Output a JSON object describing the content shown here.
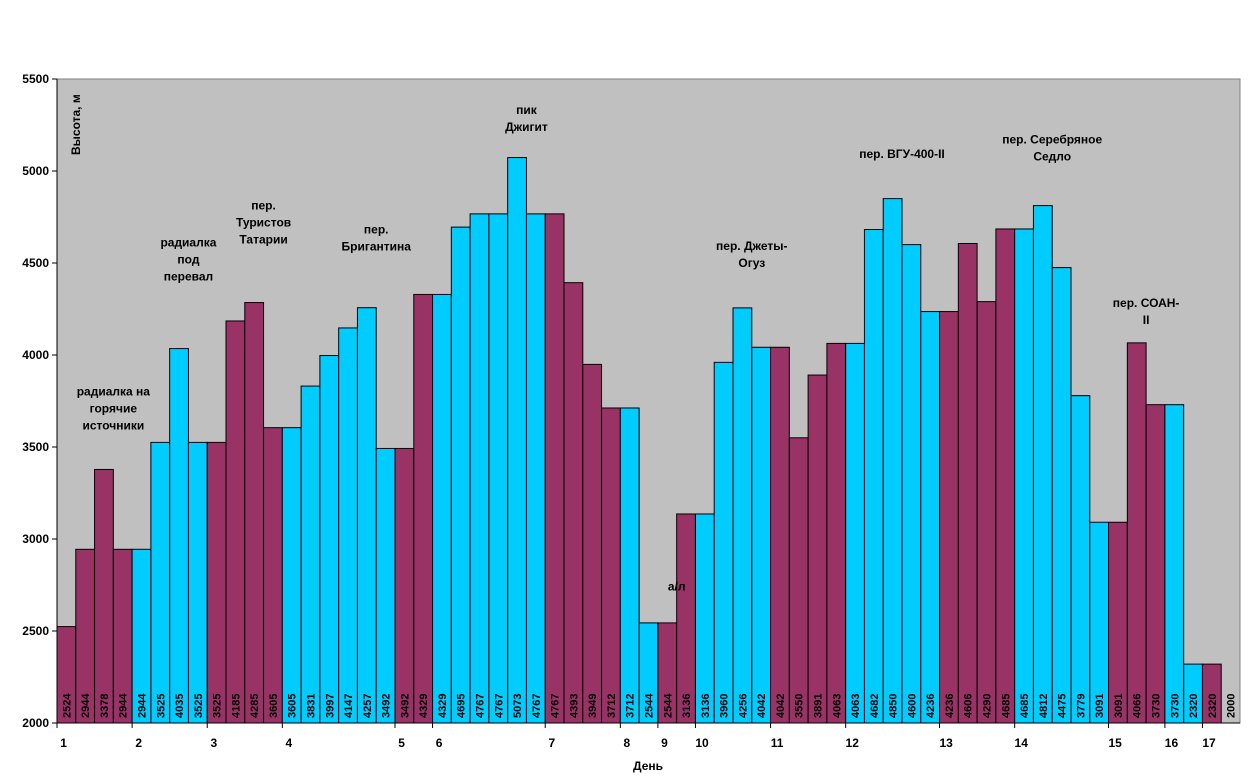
{
  "chart_data": {
    "type": "bar",
    "ylabel": "Высота, м",
    "xlabel": "День",
    "ylim": [
      2000,
      5500
    ],
    "yticks": [
      2000,
      2500,
      3000,
      3500,
      4000,
      4500,
      5000,
      5500
    ],
    "grid": false,
    "colors": {
      "plum": "#993366",
      "cyan": "#00ccff",
      "plot_bg": "#c0c0c0"
    },
    "bars": [
      {
        "value": 2524,
        "color": "plum"
      },
      {
        "value": 2944,
        "color": "plum"
      },
      {
        "value": 3378,
        "color": "plum"
      },
      {
        "value": 2944,
        "color": "plum"
      },
      {
        "value": 2944,
        "color": "cyan"
      },
      {
        "value": 3525,
        "color": "cyan"
      },
      {
        "value": 4035,
        "color": "cyan"
      },
      {
        "value": 3525,
        "color": "cyan"
      },
      {
        "value": 3525,
        "color": "plum"
      },
      {
        "value": 4185,
        "color": "plum"
      },
      {
        "value": 4285,
        "color": "plum"
      },
      {
        "value": 3605,
        "color": "plum"
      },
      {
        "value": 3605,
        "color": "cyan"
      },
      {
        "value": 3831,
        "color": "cyan"
      },
      {
        "value": 3997,
        "color": "cyan"
      },
      {
        "value": 4147,
        "color": "cyan"
      },
      {
        "value": 4257,
        "color": "cyan"
      },
      {
        "value": 3492,
        "color": "cyan"
      },
      {
        "value": 3492,
        "color": "plum"
      },
      {
        "value": 4329,
        "color": "plum"
      },
      {
        "value": 4329,
        "color": "cyan"
      },
      {
        "value": 4695,
        "color": "cyan"
      },
      {
        "value": 4767,
        "color": "cyan"
      },
      {
        "value": 4767,
        "color": "cyan"
      },
      {
        "value": 5073,
        "color": "cyan"
      },
      {
        "value": 4767,
        "color": "cyan"
      },
      {
        "value": 4767,
        "color": "plum"
      },
      {
        "value": 4393,
        "color": "plum"
      },
      {
        "value": 3949,
        "color": "plum"
      },
      {
        "value": 3712,
        "color": "plum"
      },
      {
        "value": 3712,
        "color": "cyan"
      },
      {
        "value": 2544,
        "color": "cyan"
      },
      {
        "value": 2544,
        "color": "plum"
      },
      {
        "value": 3136,
        "color": "plum"
      },
      {
        "value": 3136,
        "color": "cyan"
      },
      {
        "value": 3960,
        "color": "cyan"
      },
      {
        "value": 4256,
        "color": "cyan"
      },
      {
        "value": 4042,
        "color": "cyan"
      },
      {
        "value": 4042,
        "color": "plum"
      },
      {
        "value": 3550,
        "color": "plum"
      },
      {
        "value": 3891,
        "color": "plum"
      },
      {
        "value": 4063,
        "color": "plum"
      },
      {
        "value": 4063,
        "color": "cyan"
      },
      {
        "value": 4682,
        "color": "cyan"
      },
      {
        "value": 4850,
        "color": "cyan"
      },
      {
        "value": 4600,
        "color": "cyan"
      },
      {
        "value": 4236,
        "color": "cyan"
      },
      {
        "value": 4236,
        "color": "plum"
      },
      {
        "value": 4606,
        "color": "plum"
      },
      {
        "value": 4290,
        "color": "plum"
      },
      {
        "value": 4685,
        "color": "plum"
      },
      {
        "value": 4685,
        "color": "cyan"
      },
      {
        "value": 4812,
        "color": "cyan"
      },
      {
        "value": 4475,
        "color": "cyan"
      },
      {
        "value": 3779,
        "color": "cyan"
      },
      {
        "value": 3091,
        "color": "cyan"
      },
      {
        "value": 3091,
        "color": "plum"
      },
      {
        "value": 4066,
        "color": "plum"
      },
      {
        "value": 3730,
        "color": "plum"
      },
      {
        "value": 3730,
        "color": "cyan"
      },
      {
        "value": 2320,
        "color": "cyan"
      },
      {
        "value": 2320,
        "color": "plum"
      },
      {
        "value": 2000,
        "color": "plum"
      }
    ],
    "day_labels": [
      {
        "label": "1",
        "bar": 0
      },
      {
        "label": "2",
        "bar": 4
      },
      {
        "label": "3",
        "bar": 8
      },
      {
        "label": "4",
        "bar": 12
      },
      {
        "label": "5",
        "bar": 18
      },
      {
        "label": "6",
        "bar": 20
      },
      {
        "label": "7",
        "bar": 26
      },
      {
        "label": "8",
        "bar": 30
      },
      {
        "label": "9",
        "bar": 32
      },
      {
        "label": "10",
        "bar": 34
      },
      {
        "label": "11",
        "bar": 38
      },
      {
        "label": "12",
        "bar": 42
      },
      {
        "label": "13",
        "bar": 47
      },
      {
        "label": "14",
        "bar": 51
      },
      {
        "label": "15",
        "bar": 56
      },
      {
        "label": "16",
        "bar": 59
      },
      {
        "label": "17",
        "bar": 61
      }
    ],
    "annotations": [
      {
        "lines": [
          "радиалка на",
          "горячие",
          "источники"
        ],
        "bar": 2.5,
        "value": 3780
      },
      {
        "lines": [
          "радиалка",
          "под",
          "перевал"
        ],
        "bar": 6.5,
        "value": 4590
      },
      {
        "lines": [
          "пер.",
          "Туристов",
          "Татарии"
        ],
        "bar": 10.5,
        "value": 4790
      },
      {
        "lines": [
          "пер.",
          "Бригантина"
        ],
        "bar": 16.5,
        "value": 4660
      },
      {
        "lines": [
          "пик",
          "Джигит"
        ],
        "bar": 24.5,
        "value": 5310
      },
      {
        "lines": [
          "а/л"
        ],
        "bar": 32.5,
        "value": 2720
      },
      {
        "lines": [
          "пер. Джеты-",
          "Огуз"
        ],
        "bar": 36.5,
        "value": 4570
      },
      {
        "lines": [
          "пер. ВГУ-400-II"
        ],
        "bar": 44.5,
        "value": 5070
      },
      {
        "lines": [
          "пер. Серебряное",
          "Седло"
        ],
        "bar": 52.5,
        "value": 5150
      },
      {
        "lines": [
          "пер. СОАН-",
          "II"
        ],
        "bar": 57.5,
        "value": 4260
      }
    ]
  }
}
